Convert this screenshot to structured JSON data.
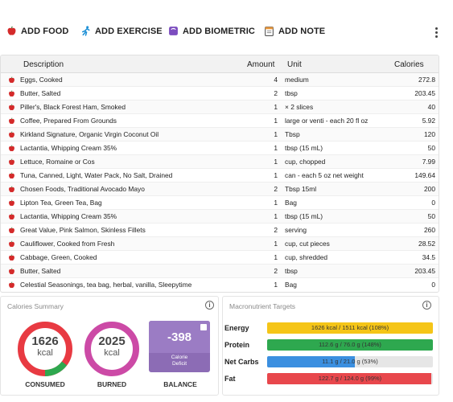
{
  "toolbar": {
    "add_food": "ADD FOOD",
    "add_exercise": "ADD EXERCISE",
    "add_biometric": "ADD BIOMETRIC",
    "add_note": "ADD NOTE"
  },
  "table": {
    "headers": {
      "description": "Description",
      "amount": "Amount",
      "unit": "Unit",
      "calories": "Calories"
    },
    "rows": [
      {
        "description": "Eggs, Cooked",
        "amount": "4",
        "unit": "medium",
        "calories": "272.8"
      },
      {
        "description": "Butter, Salted",
        "amount": "2",
        "unit": "tbsp",
        "calories": "203.45"
      },
      {
        "description": "Piller's, Black Forest Ham, Smoked",
        "amount": "1",
        "unit": "× 2 slices",
        "calories": "40"
      },
      {
        "description": "Coffee, Prepared From Grounds",
        "amount": "1",
        "unit": "large or venti - each 20 fl oz",
        "calories": "5.92"
      },
      {
        "description": "Kirkland Signature, Organic Virgin Coconut Oil",
        "amount": "1",
        "unit": "Tbsp",
        "calories": "120"
      },
      {
        "description": "Lactantia, Whipping Cream 35%",
        "amount": "1",
        "unit": "tbsp (15 mL)",
        "calories": "50"
      },
      {
        "description": "Lettuce, Romaine or Cos",
        "amount": "1",
        "unit": "cup, chopped",
        "calories": "7.99"
      },
      {
        "description": "Tuna, Canned, Light, Water Pack, No Salt, Drained",
        "amount": "1",
        "unit": "can - each 5 oz net weight",
        "calories": "149.64"
      },
      {
        "description": "Chosen Foods, Traditional Avocado Mayo",
        "amount": "2",
        "unit": "Tbsp 15ml",
        "calories": "200"
      },
      {
        "description": "Lipton Tea, Green Tea, Bag",
        "amount": "1",
        "unit": "Bag",
        "calories": "0"
      },
      {
        "description": "Lactantia, Whipping Cream 35%",
        "amount": "1",
        "unit": "tbsp (15 mL)",
        "calories": "50"
      },
      {
        "description": "Great Value, Pink Salmon, Skinless Fillets",
        "amount": "2",
        "unit": "serving",
        "calories": "260"
      },
      {
        "description": "Cauliflower, Cooked from Fresh",
        "amount": "1",
        "unit": "cup, cut pieces",
        "calories": "28.52"
      },
      {
        "description": "Cabbage, Green, Cooked",
        "amount": "1",
        "unit": "cup, shredded",
        "calories": "34.5"
      },
      {
        "description": "Butter, Salted",
        "amount": "2",
        "unit": "tbsp",
        "calories": "203.45"
      },
      {
        "description": "Celestial Seasonings, tea bag, herbal, vanilla, Sleepytime",
        "amount": "1",
        "unit": "Bag",
        "calories": "0"
      }
    ]
  },
  "calories_summary": {
    "title": "Calories Summary",
    "consumed": {
      "value": "1626",
      "unit": "kcal",
      "label": "CONSUMED"
    },
    "burned": {
      "value": "2025",
      "unit": "kcal",
      "label": "BURNED"
    },
    "balance": {
      "value": "-398",
      "sub_line1": "Calorie",
      "sub_line2": "Deficit",
      "label": "BALANCE"
    }
  },
  "macros": {
    "title": "Macronutrient Targets",
    "items": [
      {
        "label": "Energy",
        "text": "1626 kcal / 1511 kcal (108%)",
        "percent": 100,
        "color": "#f5c518"
      },
      {
        "label": "Protein",
        "text": "112.6 g / 76.0 g (148%)",
        "percent": 100,
        "color": "#2ea84f"
      },
      {
        "label": "Net Carbs",
        "text": "11.1 g / 21.0 g (53%)",
        "percent": 53,
        "color": "#3b8fe0"
      },
      {
        "label": "Fat",
        "text": "122.7 g / 124.0 g (99%)",
        "percent": 99,
        "color": "#e8474c"
      }
    ]
  },
  "colors": {
    "apple_red": "#d42a2a",
    "exercise_blue": "#1e90d6",
    "biometric_purple": "#7c4dbf",
    "balance_purple": "#9b7cc4",
    "ring_red": "#e83a42",
    "ring_green": "#2ea84f",
    "ring_pink": "#cc4aa6"
  }
}
